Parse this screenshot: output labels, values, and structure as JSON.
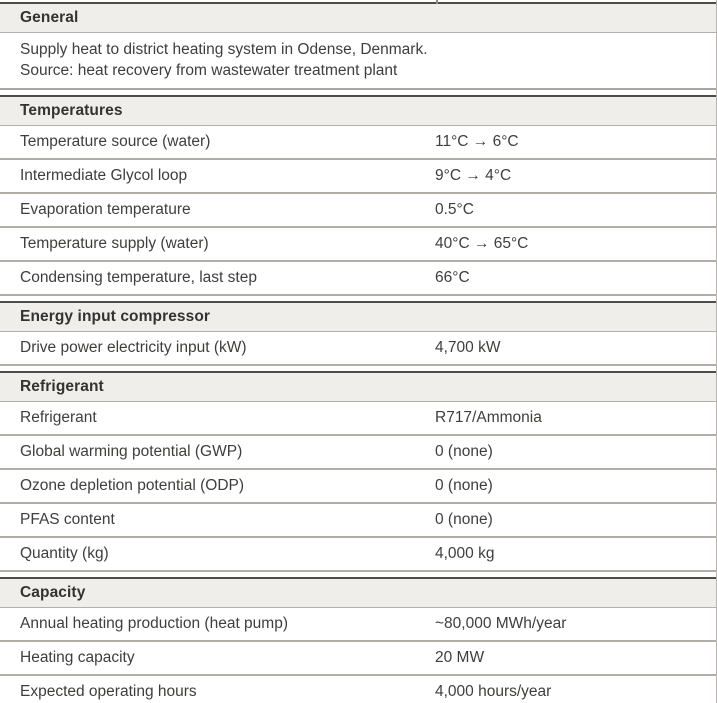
{
  "table": {
    "colors": {
      "header_background": "#efeeeb",
      "header_top_border": "#4e4c49",
      "row_separator": "#b1aeaa",
      "text": "#3e3e3c"
    },
    "sections": [
      {
        "title": "General",
        "body": [
          "Supply heat to district heating system in Odense, Denmark.",
          "Source: heat recovery from wastewater treatment plant"
        ],
        "rows": []
      },
      {
        "title": "Temperatures",
        "rows": [
          {
            "label": "Temperature source (water)",
            "value": "11°C → 6°C"
          },
          {
            "label": "Intermediate Glycol loop",
            "value": "9°C → 4°C"
          },
          {
            "label": "Evaporation temperature",
            "value": "0.5°C"
          },
          {
            "label": "Temperature supply (water)",
            "value": "40°C → 65°C"
          },
          {
            "label": "Condensing temperature, last step",
            "value": "66°C"
          }
        ]
      },
      {
        "title": "Energy input compressor",
        "rows": [
          {
            "label": "Drive power electricity input (kW)",
            "value": "4,700 kW"
          }
        ]
      },
      {
        "title": "Refrigerant",
        "rows": [
          {
            "label": "Refrigerant",
            "value": "R717/Ammonia"
          },
          {
            "label": "Global warming potential (GWP)",
            "value": "0 (none)"
          },
          {
            "label": "Ozone depletion potential (ODP)",
            "value": "0 (none)"
          },
          {
            "label": "PFAS content",
            "value": "0 (none)"
          },
          {
            "label": "Quantity (kg)",
            "value": "4,000 kg"
          }
        ]
      },
      {
        "title": "Capacity",
        "rows": [
          {
            "label": "Annual heating production (heat pump)",
            "value": "~80,000 MWh/year"
          },
          {
            "label": "Heating capacity",
            "value": "20 MW"
          },
          {
            "label": "Expected operating hours",
            "value": "4,000 hours/year"
          }
        ]
      }
    ]
  }
}
